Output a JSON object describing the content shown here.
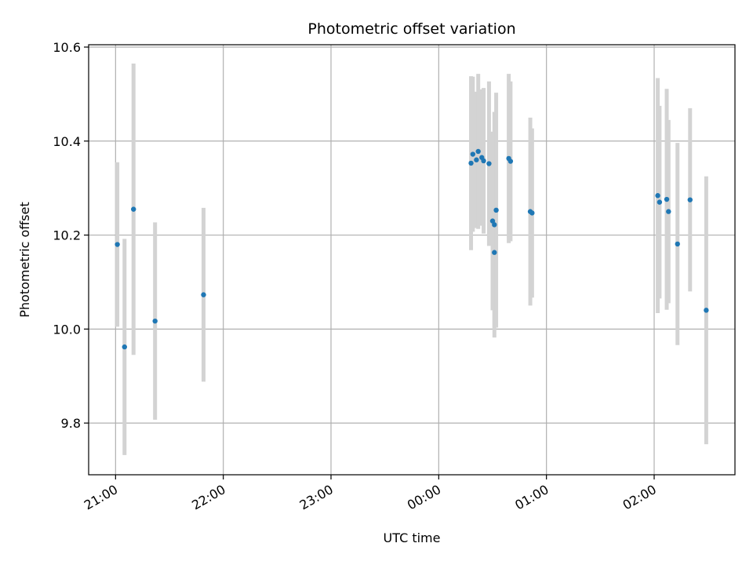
{
  "chart_data": {
    "type": "scatter",
    "title": "Photometric offset variation",
    "xlabel": "UTC time",
    "ylabel": "Photometric offset",
    "x_axis": "time",
    "x_start": "21:00",
    "xlim": [
      "20:45",
      "02:45"
    ],
    "ylim": [
      9.69,
      10.605
    ],
    "x_ticks": [
      "21:00",
      "22:00",
      "23:00",
      "00:00",
      "01:00",
      "02:00"
    ],
    "y_ticks": [
      9.8,
      10.0,
      10.2,
      10.4,
      10.6
    ],
    "y_tick_labels": [
      "9.8",
      "10.0",
      "10.2",
      "10.4",
      "10.6"
    ],
    "grid": true,
    "colors": {
      "point": "#1f77b4",
      "errorbar": "#d3d3d3",
      "grid": "#b0b0b0"
    },
    "points": [
      {
        "x": "21:01",
        "y": 10.18,
        "err": 0.175
      },
      {
        "x": "21:05",
        "y": 9.962,
        "err": 0.23
      },
      {
        "x": "21:10",
        "y": 10.255,
        "err": 0.31
      },
      {
        "x": "21:22",
        "y": 10.017,
        "err": 0.21
      },
      {
        "x": "21:49",
        "y": 10.073,
        "err": 0.185
      },
      {
        "x": "00:18",
        "y": 10.353,
        "err": 0.185
      },
      {
        "x": "00:19",
        "y": 10.372,
        "err": 0.165
      },
      {
        "x": "00:21",
        "y": 10.36,
        "err": 0.145
      },
      {
        "x": "00:22",
        "y": 10.378,
        "err": 0.165
      },
      {
        "x": "00:24",
        "y": 10.365,
        "err": 0.145
      },
      {
        "x": "00:25",
        "y": 10.358,
        "err": 0.155
      },
      {
        "x": "00:28",
        "y": 10.352,
        "err": 0.175
      },
      {
        "x": "00:30",
        "y": 10.23,
        "err": 0.19
      },
      {
        "x": "00:31",
        "y": 10.222,
        "err": 0.24
      },
      {
        "x": "00:31",
        "y": 10.163,
        "err": 0.16
      },
      {
        "x": "00:32",
        "y": 10.253,
        "err": 0.25
      },
      {
        "x": "00:39",
        "y": 10.363,
        "err": 0.18
      },
      {
        "x": "00:40",
        "y": 10.357,
        "err": 0.17
      },
      {
        "x": "00:51",
        "y": 10.25,
        "err": 0.2
      },
      {
        "x": "00:52",
        "y": 10.247,
        "err": 0.18
      },
      {
        "x": "02:02",
        "y": 10.284,
        "err": 0.25
      },
      {
        "x": "02:03",
        "y": 10.27,
        "err": 0.205
      },
      {
        "x": "02:07",
        "y": 10.276,
        "err": 0.235
      },
      {
        "x": "02:08",
        "y": 10.25,
        "err": 0.195
      },
      {
        "x": "02:13",
        "y": 10.181,
        "err": 0.215
      },
      {
        "x": "02:20",
        "y": 10.275,
        "err": 0.195
      },
      {
        "x": "02:29",
        "y": 10.04,
        "err": 0.285
      }
    ]
  }
}
